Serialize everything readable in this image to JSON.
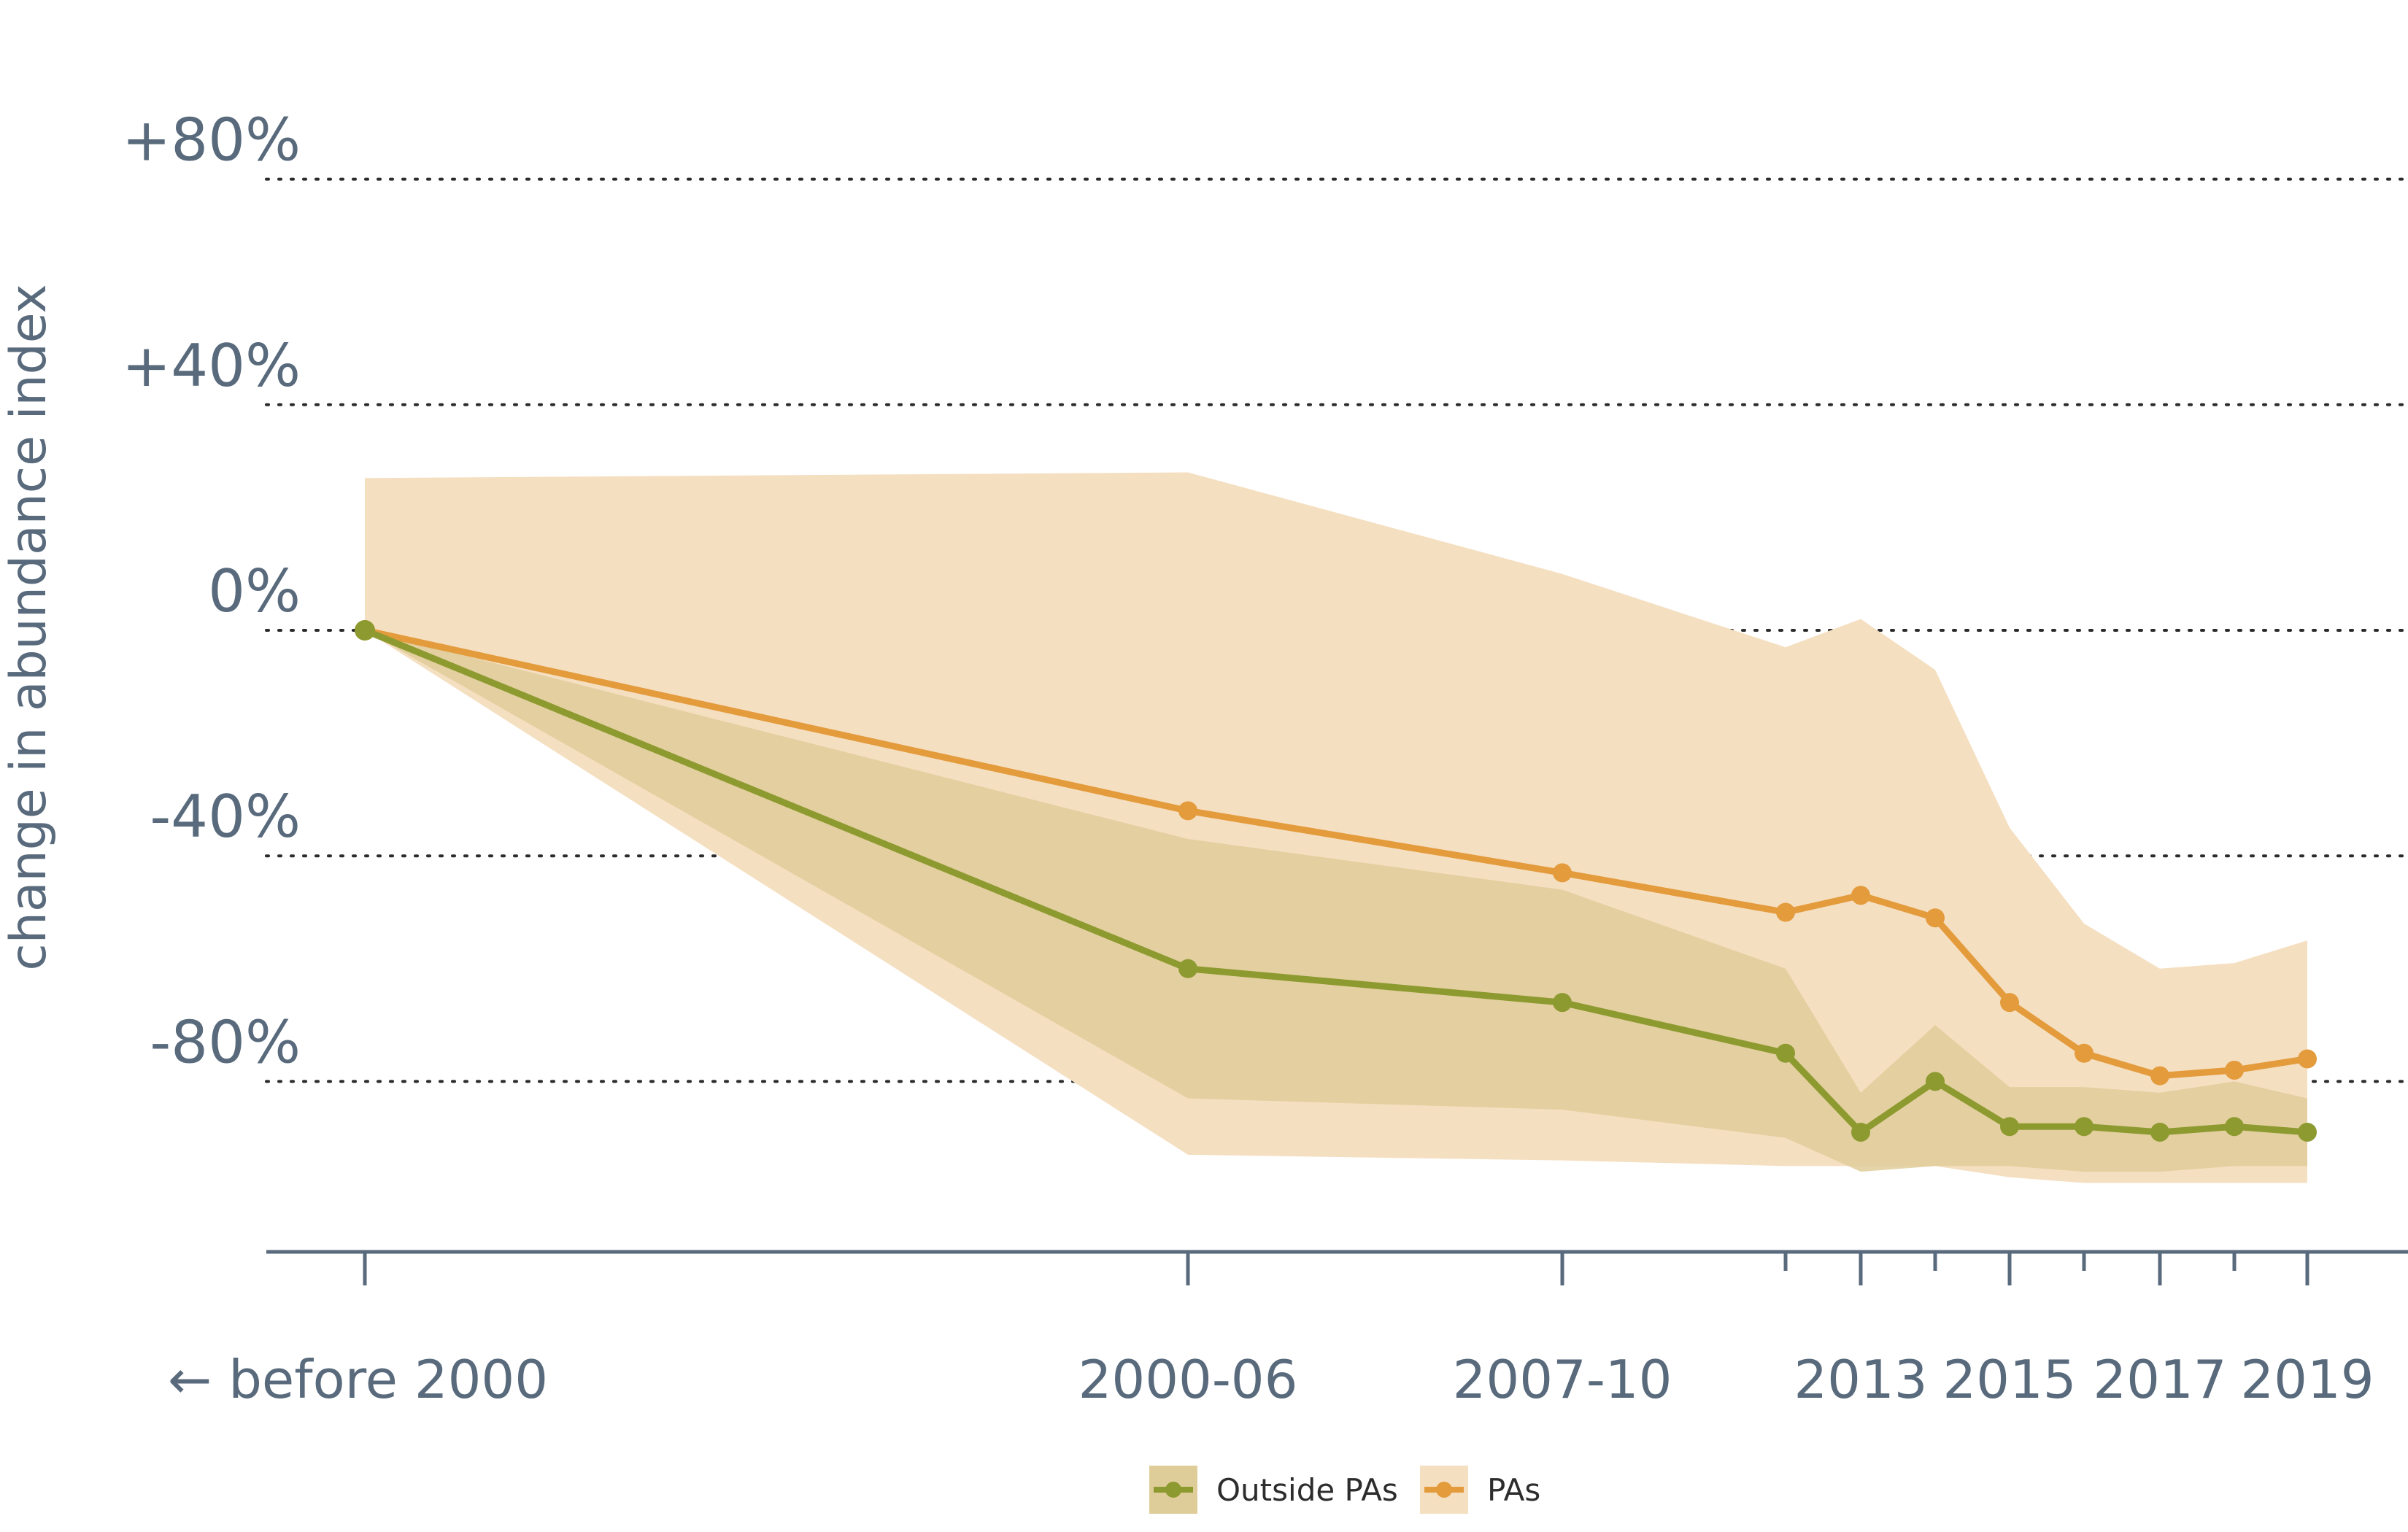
{
  "chart_data": {
    "type": "line",
    "ylabel": "change in abundance index",
    "xlabel": "",
    "y_ticks": [
      {
        "value": 80,
        "label": "+80%"
      },
      {
        "value": 40,
        "label": "+40%"
      },
      {
        "value": 0,
        "label": "0%"
      },
      {
        "value": -40,
        "label": "-40%"
      },
      {
        "value": -80,
        "label": "-80%"
      }
    ],
    "ylim": [
      -110,
      80
    ],
    "grid": "horizontal dotted",
    "x_positions": [
      "before 2000",
      "2000-06",
      "2007-10",
      "2012",
      "2013",
      "2014",
      "2015",
      "2016",
      "2017",
      "2018",
      "2019"
    ],
    "x_tick_labels": [
      {
        "x": "before 2000",
        "label": "← before 2000"
      },
      {
        "x": "2000-06",
        "label": "2000-06"
      },
      {
        "x": "2007-10",
        "label": "2007-10"
      },
      {
        "x": "2013",
        "label": "2013"
      },
      {
        "x": "2015",
        "label": "2015"
      },
      {
        "x": "2017",
        "label": "2017"
      },
      {
        "x": "2019",
        "label": "2019"
      }
    ],
    "series": [
      {
        "name": "PAs",
        "color": "#e39b3c",
        "band_color": "#f5dfc1",
        "values": [
          0,
          -32,
          -43,
          -50,
          -47,
          -51,
          -66,
          -75,
          -79,
          -78,
          -76
        ],
        "lower": [
          0,
          -93,
          -94,
          -95,
          -95,
          -95,
          -97,
          -98,
          -98,
          -98,
          -98
        ],
        "upper": [
          27,
          28,
          10,
          -3,
          2,
          -7,
          -35,
          -52,
          -60,
          -59,
          -55
        ]
      },
      {
        "name": "Outside PAs",
        "color": "#8d9a2f",
        "band_color": "#dfcd99",
        "values": [
          0,
          -60,
          -66,
          -75,
          -89,
          -80,
          -88,
          -88,
          -89,
          -88,
          -89
        ],
        "lower": [
          0,
          -83,
          -85,
          -90,
          -96,
          -95,
          -95,
          -96,
          -96,
          -95,
          -95
        ],
        "upper": [
          0,
          -37,
          -46,
          -60,
          -82,
          -70,
          -81,
          -81,
          -82,
          -80,
          -83
        ]
      }
    ],
    "legend": {
      "position": "bottom-center",
      "entries": [
        "Outside PAs",
        "PAs"
      ]
    }
  }
}
